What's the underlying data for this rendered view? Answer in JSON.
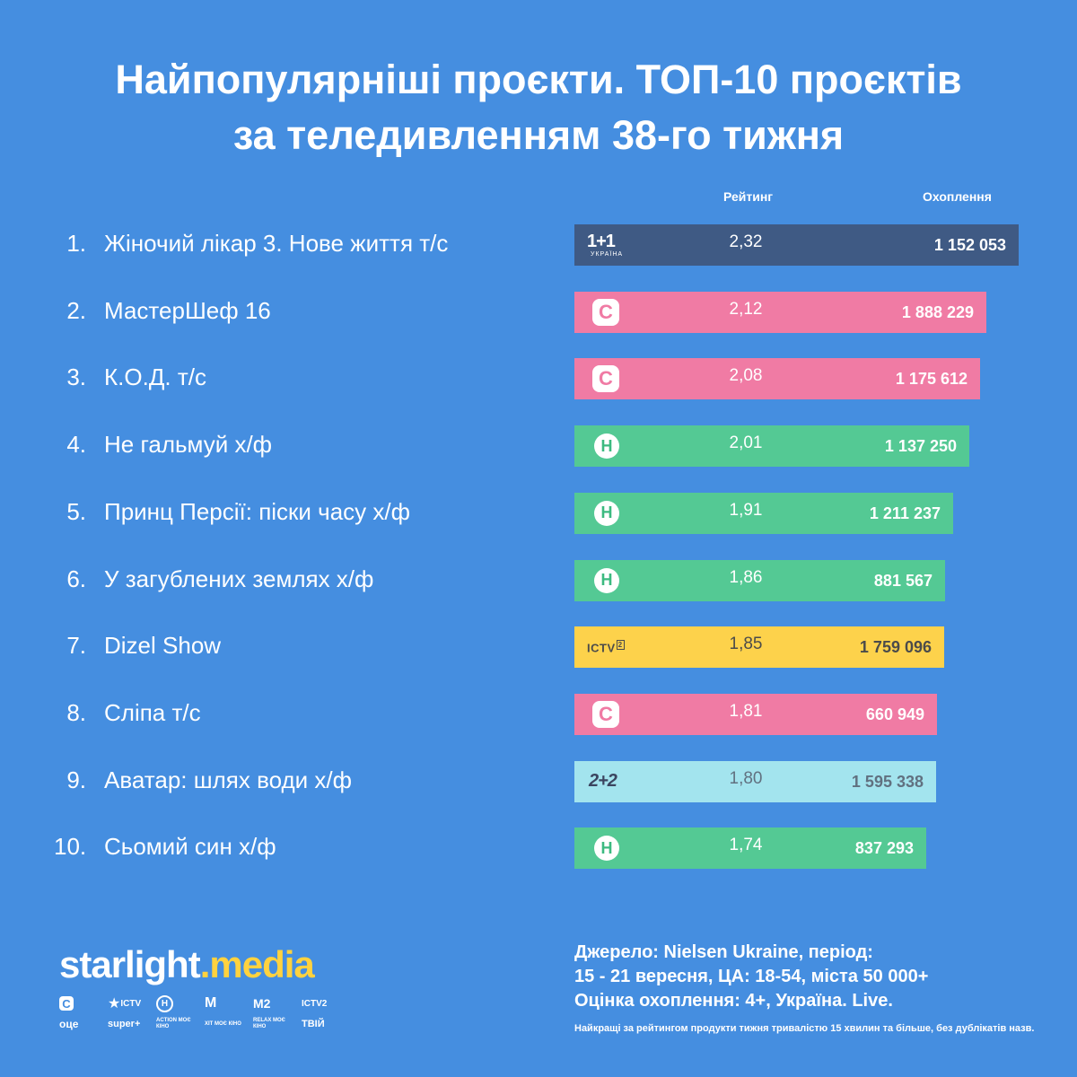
{
  "title": {
    "line1": "Найпопулярніші проєкти. ТОП-10 проєктів",
    "line2": "за теледивленням 38-го тижня"
  },
  "headers": {
    "rating": "Рейтинг",
    "reach": "Охоплення"
  },
  "channels": {
    "oneplusone": {
      "name": "1+1",
      "sub": "УКРАЇНА",
      "color": "#3f5a84",
      "text_color": "#ffffff"
    },
    "stb": {
      "letter": "С",
      "color": "#f07ba4",
      "text_color": "#ffffff"
    },
    "novyi": {
      "letter": "Н",
      "color": "#54c994",
      "text_color": "#ffffff"
    },
    "ictv2": {
      "name": "ICTV",
      "sup": "2",
      "color": "#fdd24b",
      "text_color": "#4b4b4b"
    },
    "twoplustwo": {
      "name": "2+2",
      "color": "#a3e4ee",
      "text_color": "#617180"
    }
  },
  "chart_data": {
    "type": "bar",
    "title": "Найпопулярніші проєкти. ТОП-10 проєктів за теледивленням 38-го тижня",
    "columns": [
      "Рейтинг",
      "Охоплення"
    ],
    "rows": [
      {
        "rank": "1.",
        "name": "Жіночий лікар 3. Нове життя т/с",
        "channel": "oneplusone",
        "rating": "2,32",
        "rating_value": 2.32,
        "reach": "1 152 053"
      },
      {
        "rank": "2.",
        "name": "МастерШеф 16",
        "channel": "stb",
        "rating": "2,12",
        "rating_value": 2.12,
        "reach": "1 888 229"
      },
      {
        "rank": "3.",
        "name": "К.О.Д. т/с",
        "channel": "stb",
        "rating": "2,08",
        "rating_value": 2.08,
        "reach": "1 175 612"
      },
      {
        "rank": "4.",
        "name": "Не гальмуй х/ф",
        "channel": "novyi",
        "rating": "2,01",
        "rating_value": 2.01,
        "reach": "1 137 250"
      },
      {
        "rank": "5.",
        "name": "Принц Персії: піски часу х/ф",
        "channel": "novyi",
        "rating": "1,91",
        "rating_value": 1.91,
        "reach": "1 211 237"
      },
      {
        "rank": "6.",
        "name": "У загублених землях х/ф",
        "channel": "novyi",
        "rating": "1,86",
        "rating_value": 1.86,
        "reach": "881 567"
      },
      {
        "rank": "7.",
        "name": "Dizel Show",
        "channel": "ictv2",
        "rating": "1,85",
        "rating_value": 1.85,
        "reach": "1 759 096"
      },
      {
        "rank": "8.",
        "name": "Сліпа т/с",
        "channel": "stb",
        "rating": "1,81",
        "rating_value": 1.81,
        "reach": "660 949"
      },
      {
        "rank": "9.",
        "name": "Аватар: шлях води х/ф",
        "channel": "twoplustwo",
        "rating": "1,80",
        "rating_value": 1.8,
        "reach": "1 595 338"
      },
      {
        "rank": "10.",
        "name": "Сьомий син х/ф",
        "channel": "novyi",
        "rating": "1,74",
        "rating_value": 1.74,
        "reach": "837 293"
      }
    ]
  },
  "brand": {
    "part1": "starlight",
    "dot": ".",
    "part2": "media",
    "channel_row1": [
      "С",
      "ICTV",
      "Н",
      "М",
      "М2",
      "ICTV2"
    ],
    "channel_row2": [
      "оце",
      "super+",
      "ACTION МОЄ КІНО",
      "ХІТ МОЄ КІНО",
      "RELAX МОЄ КІНО",
      "ТВІЙ"
    ]
  },
  "source": {
    "line1": "Джерело: Nielsen Ukraine, період:",
    "line2": "15 - 21 вересня, ЦА: 18-54, міста 50 000+",
    "line3": "Оцінка охоплення: 4+, Україна. Live."
  },
  "note": "Найкращі за рейтингом продукти тижня тривалістю 15 хвилин та більше, без дублікатів назв.",
  "colors": {
    "background": "#458ee0",
    "brand_accent": "#ffd23f"
  }
}
